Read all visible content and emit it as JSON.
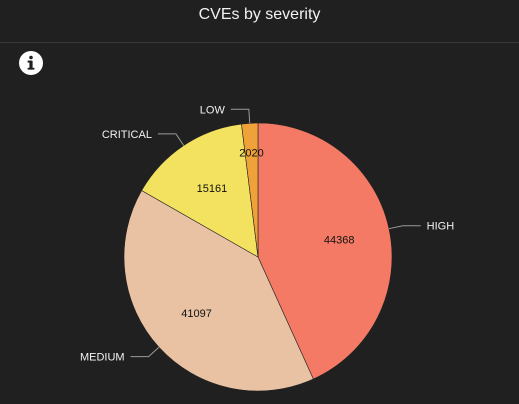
{
  "title": "CVEs by severity",
  "info_icon": "info-icon",
  "chart_data": {
    "type": "pie",
    "title": "CVEs by severity",
    "slices": [
      {
        "label": "HIGH",
        "value": 44368,
        "color": "#f47a65"
      },
      {
        "label": "MEDIUM",
        "value": 41097,
        "color": "#e8c2a3"
      },
      {
        "label": "CRITICAL",
        "value": 15161,
        "color": "#f2e25f"
      },
      {
        "label": "LOW",
        "value": 2020,
        "color": "#f0a23a"
      }
    ]
  }
}
